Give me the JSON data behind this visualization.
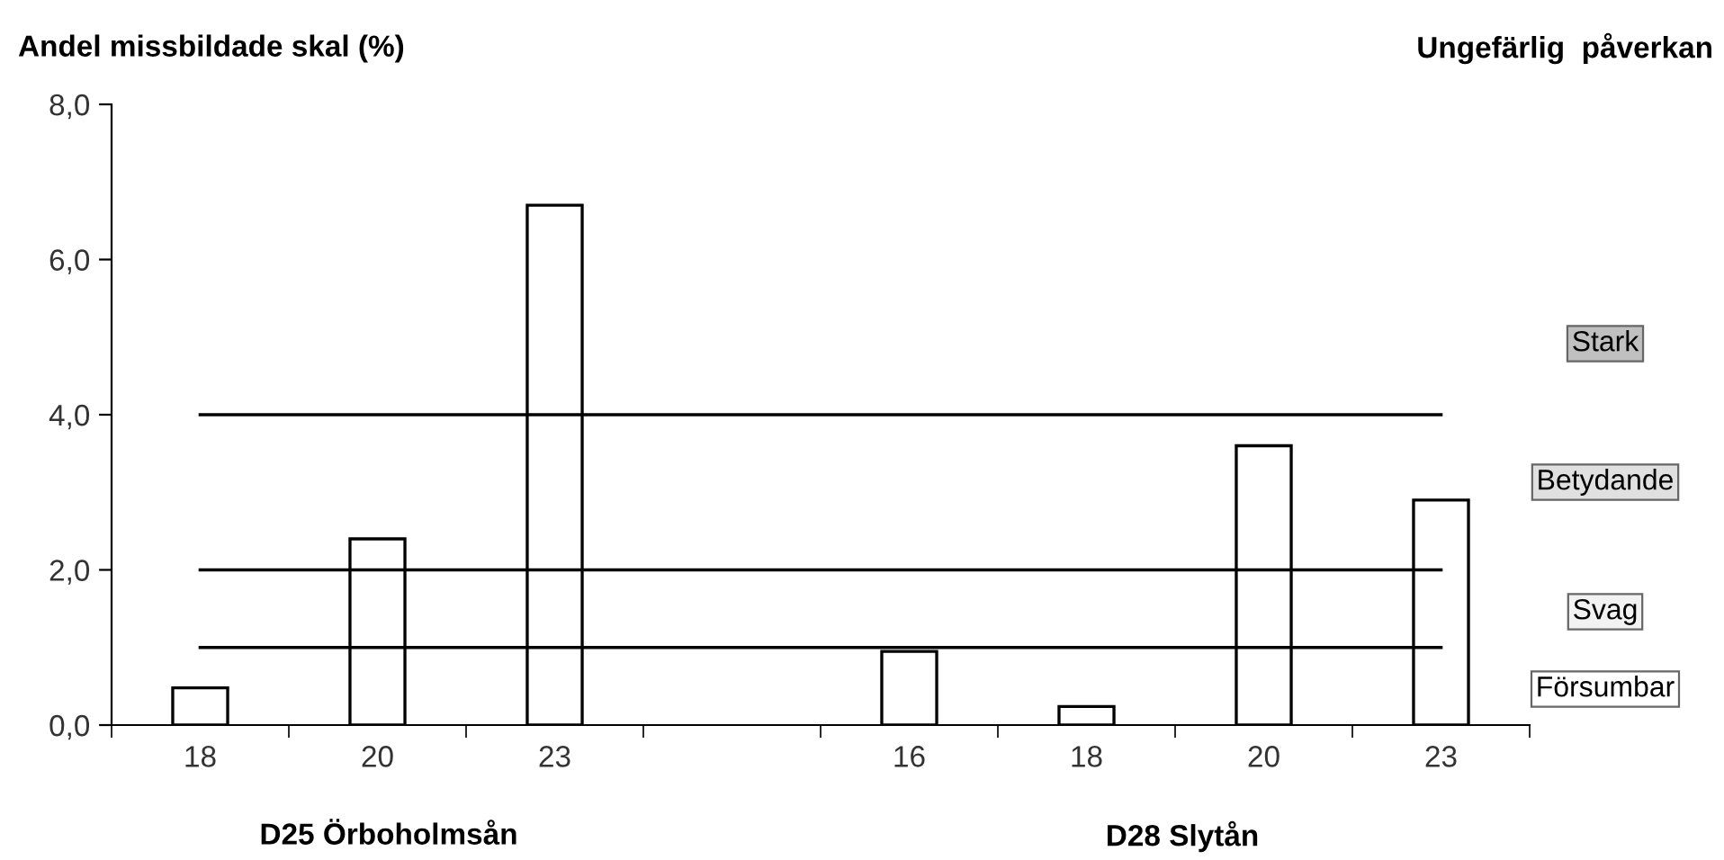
{
  "chart_data": {
    "type": "bar",
    "ylabel": "Andel missbildade skal (%)",
    "categories": [
      "18",
      "20",
      "23",
      null,
      "16",
      "18",
      "20",
      "23"
    ],
    "values": [
      0.48,
      2.4,
      6.7,
      null,
      0.95,
      0.24,
      3.6,
      2.9
    ],
    "color": "#ffffff",
    "ylim": [
      0,
      8
    ],
    "yticks": [
      {
        "value": 0,
        "label": "0,0"
      },
      {
        "value": 2,
        "label": "2,0"
      },
      {
        "value": 4,
        "label": "4,0"
      },
      {
        "value": 6,
        "label": "6,0"
      },
      {
        "value": 8,
        "label": "8,0"
      }
    ],
    "ref_lines": [
      {
        "axis": "y",
        "value": 1,
        "color": "#000000"
      },
      {
        "axis": "y",
        "value": 2,
        "color": "#000000"
      },
      {
        "axis": "y",
        "value": 4,
        "color": "#000000"
      }
    ],
    "annotations": [
      "Ungefärlig  påverkan",
      "Stark",
      "Betydande",
      "Svag",
      "Försumbar",
      "D25 Örboholmsån",
      "D28 Slytån"
    ],
    "grid": false,
    "legend": false
  }
}
